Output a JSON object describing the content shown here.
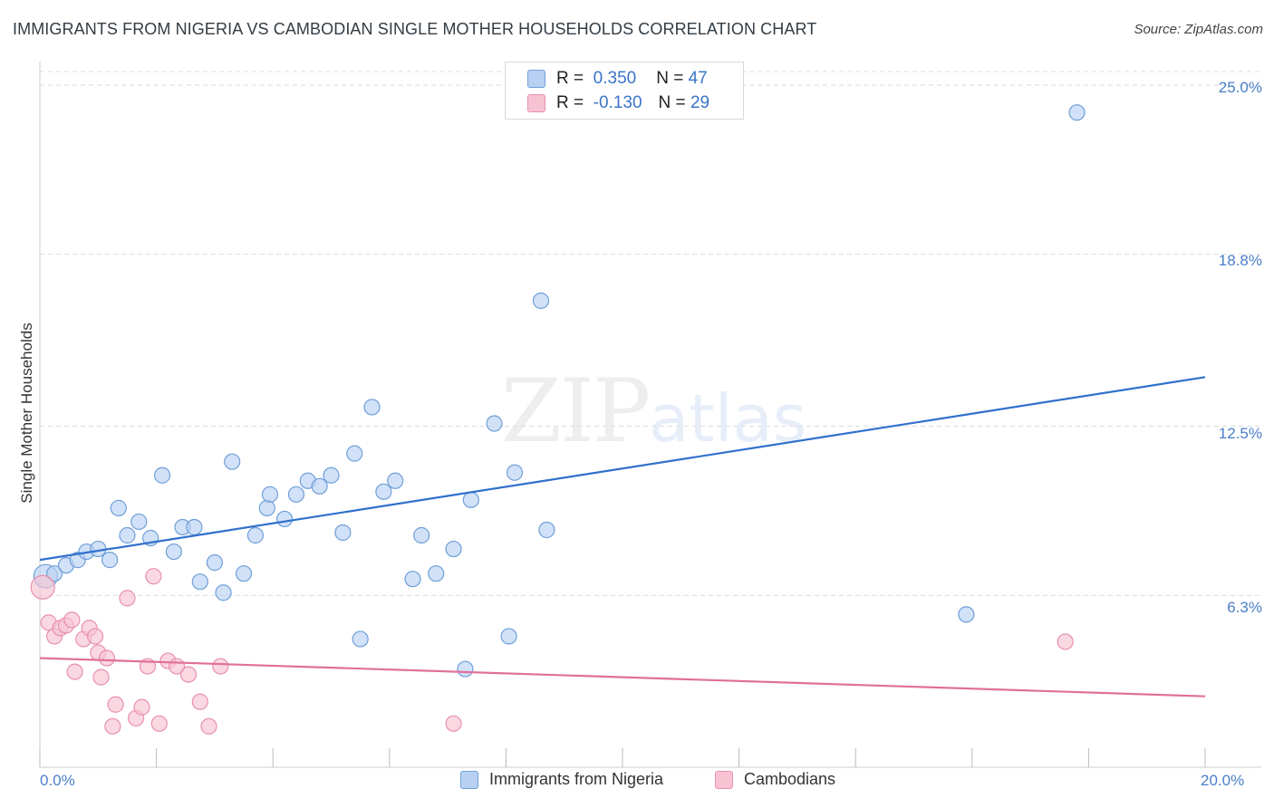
{
  "header": {
    "title": "IMMIGRANTS FROM NIGERIA VS CAMBODIAN SINGLE MOTHER HOUSEHOLDS CORRELATION CHART",
    "source": "Source: ZipAtlas.com"
  },
  "watermark": {
    "zip": "ZIP",
    "atlas": "atlas"
  },
  "legend_top": [
    {
      "r_label": "R =",
      "r_value": "0.350",
      "n_label": "N =",
      "n_value": "47"
    },
    {
      "r_label": "R =",
      "r_value": "-0.130",
      "n_label": "N =",
      "n_value": "29"
    }
  ],
  "colors": {
    "nigeria_fill": "#b8d1f3",
    "nigeria_stroke": "#6f9fd8",
    "nigeria_line": "#3070cc",
    "cambodian_fill": "#f7c3d3",
    "cambodian_stroke": "#e890ad",
    "cambodian_line": "#e0709a",
    "grid": "#dddddd",
    "tick_label": "#4a7fc8"
  },
  "chart_data": {
    "type": "scatter",
    "title": "IMMIGRANTS FROM NIGERIA VS CAMBODIAN SINGLE MOTHER HOUSEHOLDS CORRELATION CHART",
    "xlabel": "",
    "ylabel": "Single Mother Households",
    "xlim": [
      0,
      20
    ],
    "ylim": [
      0,
      25.5
    ],
    "x_tick_labels": [
      "0.0%",
      "20.0%"
    ],
    "y_ticks": [
      6.3,
      12.5,
      18.8,
      25.0
    ],
    "y_tick_labels": [
      "6.3%",
      "12.5%",
      "18.8%",
      "25.0%"
    ],
    "grid": true,
    "legend_position": "bottom",
    "series": [
      {
        "name": "Immigrants from Nigeria",
        "r": 0.35,
        "n": 47,
        "trend": {
          "x": [
            0,
            20
          ],
          "y": [
            7.6,
            14.3
          ]
        },
        "points": [
          [
            0.1,
            7.0
          ],
          [
            0.25,
            7.1
          ],
          [
            0.45,
            7.4
          ],
          [
            0.65,
            7.6
          ],
          [
            0.8,
            7.9
          ],
          [
            1.0,
            8.0
          ],
          [
            1.2,
            7.6
          ],
          [
            1.35,
            9.5
          ],
          [
            1.5,
            8.5
          ],
          [
            1.7,
            9.0
          ],
          [
            1.9,
            8.4
          ],
          [
            2.1,
            10.7
          ],
          [
            2.3,
            7.9
          ],
          [
            2.45,
            8.8
          ],
          [
            2.65,
            8.8
          ],
          [
            2.75,
            6.8
          ],
          [
            3.0,
            7.5
          ],
          [
            3.15,
            6.4
          ],
          [
            3.3,
            11.2
          ],
          [
            3.5,
            7.1
          ],
          [
            3.7,
            8.5
          ],
          [
            3.9,
            9.5
          ],
          [
            3.95,
            10.0
          ],
          [
            4.2,
            9.1
          ],
          [
            4.4,
            10.0
          ],
          [
            4.6,
            10.5
          ],
          [
            4.8,
            10.3
          ],
          [
            5.0,
            10.7
          ],
          [
            5.2,
            8.6
          ],
          [
            5.4,
            11.5
          ],
          [
            5.5,
            4.7
          ],
          [
            5.7,
            13.2
          ],
          [
            5.9,
            10.1
          ],
          [
            6.1,
            10.5
          ],
          [
            6.4,
            6.9
          ],
          [
            6.55,
            8.5
          ],
          [
            6.8,
            7.1
          ],
          [
            7.1,
            8.0
          ],
          [
            7.3,
            3.6
          ],
          [
            7.4,
            9.8
          ],
          [
            7.8,
            12.6
          ],
          [
            8.05,
            4.8
          ],
          [
            8.15,
            10.8
          ],
          [
            8.6,
            17.1
          ],
          [
            8.7,
            8.7
          ],
          [
            15.9,
            5.6
          ],
          [
            17.8,
            24.0
          ]
        ]
      },
      {
        "name": "Cambodians",
        "r": -0.13,
        "n": 29,
        "trend": {
          "x": [
            0,
            20
          ],
          "y": [
            4.0,
            2.6
          ]
        },
        "points": [
          [
            0.05,
            6.6
          ],
          [
            0.15,
            5.3
          ],
          [
            0.25,
            4.8
          ],
          [
            0.35,
            5.1
          ],
          [
            0.45,
            5.2
          ],
          [
            0.55,
            5.4
          ],
          [
            0.6,
            3.5
          ],
          [
            0.75,
            4.7
          ],
          [
            0.85,
            5.1
          ],
          [
            0.95,
            4.8
          ],
          [
            1.0,
            4.2
          ],
          [
            1.05,
            3.3
          ],
          [
            1.15,
            4.0
          ],
          [
            1.25,
            1.5
          ],
          [
            1.3,
            2.3
          ],
          [
            1.5,
            6.2
          ],
          [
            1.65,
            1.8
          ],
          [
            1.75,
            2.2
          ],
          [
            1.85,
            3.7
          ],
          [
            1.95,
            7.0
          ],
          [
            2.05,
            1.6
          ],
          [
            2.2,
            3.9
          ],
          [
            2.35,
            3.7
          ],
          [
            2.55,
            3.4
          ],
          [
            2.75,
            2.4
          ],
          [
            2.9,
            1.5
          ],
          [
            3.1,
            3.7
          ],
          [
            7.1,
            1.6
          ],
          [
            17.6,
            4.6
          ]
        ]
      }
    ]
  }
}
